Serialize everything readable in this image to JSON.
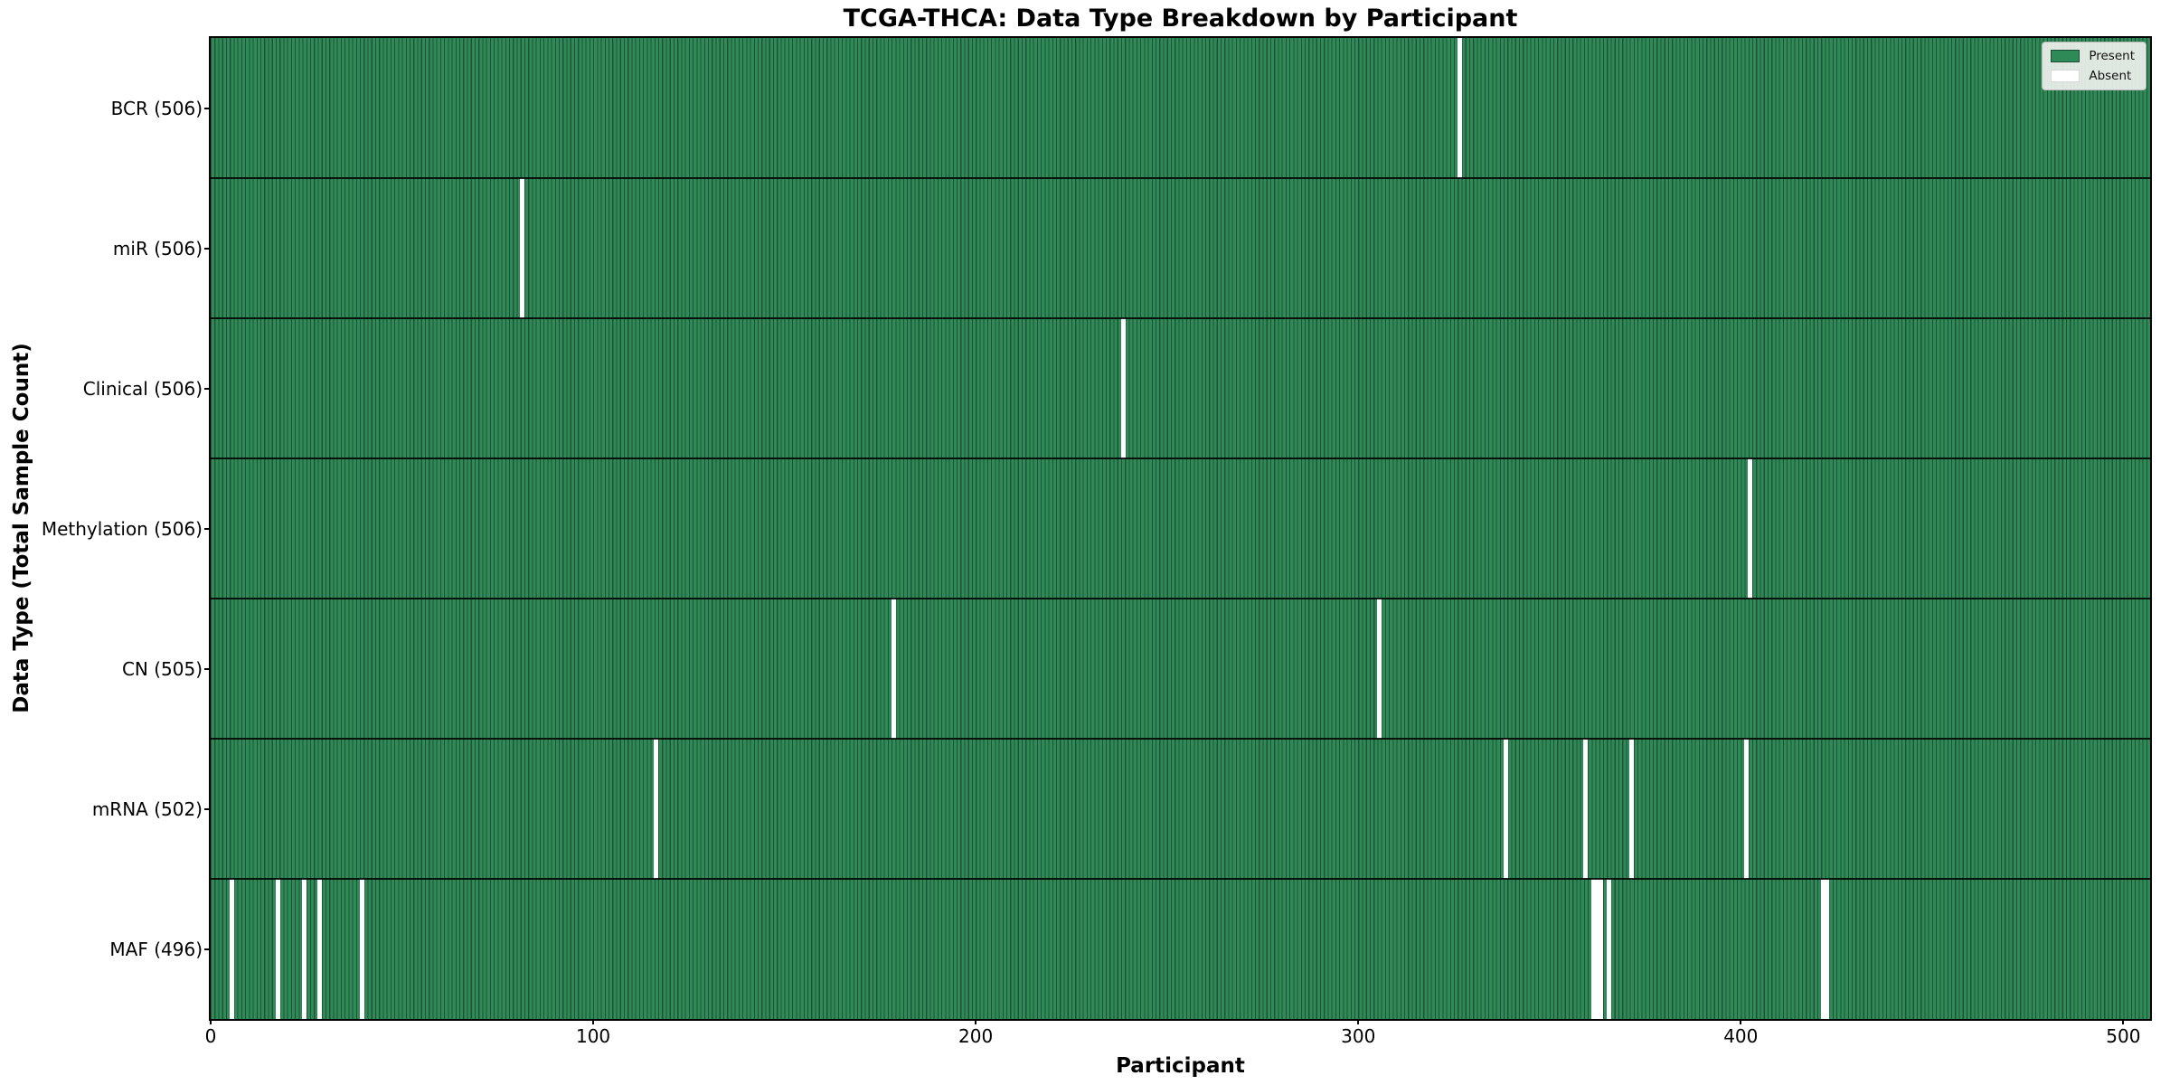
{
  "figure": {
    "title": "TCGA-THCA: Data Type Breakdown by Participant",
    "xlabel": "Participant",
    "ylabel": "Data Type (Total Sample Count)",
    "legend": {
      "present_label": "Present",
      "absent_label": "Absent"
    }
  },
  "chart_data": {
    "type": "heatmap",
    "title": "TCGA-THCA: Data Type Breakdown by Participant",
    "xlabel": "Participant",
    "ylabel": "Data Type (Total Sample Count)",
    "n_participants": 507,
    "xlim": [
      0,
      507
    ],
    "x_ticks": [
      0,
      100,
      200,
      300,
      400,
      500
    ],
    "grid": false,
    "legend_position": "upper right",
    "legend": [
      {
        "label": "Present",
        "color": "#2e8b57"
      },
      {
        "label": "Absent",
        "color": "#ffffff"
      }
    ],
    "colors": {
      "present": "#2e8b57",
      "absent": "#ffffff",
      "bar_edge": "#235037"
    },
    "rows": [
      {
        "data_type": "BCR",
        "label": "BCR (506)",
        "present_count": 506,
        "absent_participants": [
          326
        ]
      },
      {
        "data_type": "miR",
        "label": "miR (506)",
        "present_count": 506,
        "absent_participants": [
          81
        ]
      },
      {
        "data_type": "Clinical",
        "label": "Clinical (506)",
        "present_count": 506,
        "absent_participants": [
          238
        ]
      },
      {
        "data_type": "Methylation",
        "label": "Methylation (506)",
        "present_count": 506,
        "absent_participants": [
          402
        ]
      },
      {
        "data_type": "CN",
        "label": "CN (505)",
        "present_count": 505,
        "absent_participants": [
          178,
          305
        ]
      },
      {
        "data_type": "mRNA",
        "label": "mRNA (502)",
        "present_count": 502,
        "absent_participants": [
          116,
          338,
          359,
          371,
          401
        ]
      },
      {
        "data_type": "MAF",
        "label": "MAF (496)",
        "present_count": 496,
        "absent_participants": [
          5,
          17,
          24,
          28,
          39,
          361,
          362,
          363,
          365,
          421,
          422
        ]
      }
    ]
  }
}
